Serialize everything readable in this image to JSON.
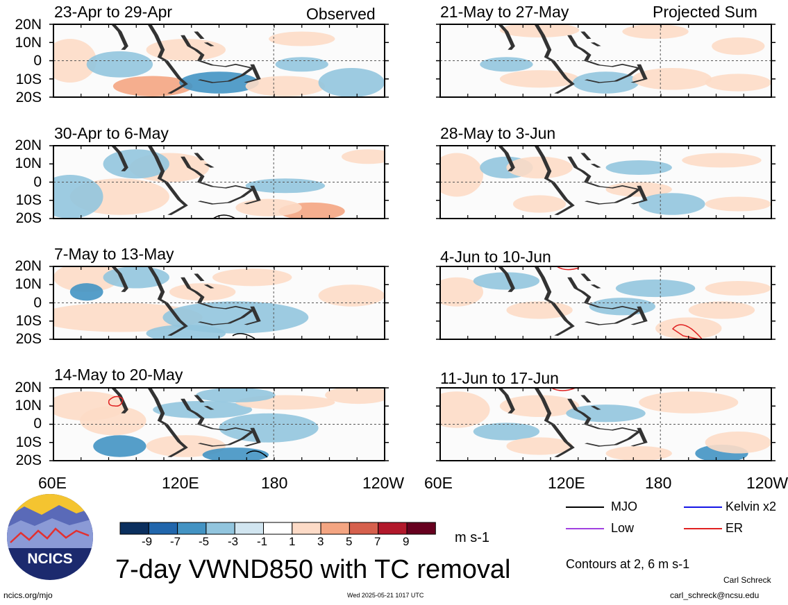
{
  "header": {
    "left": "Observed",
    "right": "Projected Sum"
  },
  "panels": {
    "left": [
      "23-Apr to 29-Apr",
      "30-Apr to 6-May",
      "7-May to 13-May",
      "14-May to 20-May"
    ],
    "right": [
      "21-May to 27-May",
      "28-May to 3-Jun",
      "4-Jun to 10-Jun",
      "11-Jun to 17-Jun"
    ]
  },
  "lat_labels": [
    "20N",
    "10N",
    "0",
    "10S",
    "20S"
  ],
  "lon_labels": [
    "60E",
    "120E",
    "180",
    "120W"
  ],
  "colorbar": {
    "ticks": [
      "-9",
      "-7",
      "-5",
      "-3",
      "-1",
      "1",
      "3",
      "5",
      "7",
      "9"
    ],
    "colors": [
      "#0b2f5e",
      "#2166ac",
      "#4393c3",
      "#92c5de",
      "#d1e5f0",
      "#ffffff",
      "#fddbc7",
      "#f4a582",
      "#d6604d",
      "#b2182b",
      "#67001f"
    ],
    "unit": "m s-1"
  },
  "title": "7-day VWND850 with TC removal",
  "legend": [
    {
      "label": "MJO",
      "color": "#000000"
    },
    {
      "label": "Kelvin x2",
      "color": "#1414e6"
    },
    {
      "label": "Low",
      "color": "#a040e0"
    },
    {
      "label": "ER",
      "color": "#e02020"
    }
  ],
  "contour_note": "Contours at 2, 6 m s-1",
  "logo_text": "NCICS",
  "footer": {
    "site": "ncics.org/mjo",
    "timestamp": "Wed 2025-05-21 1017 UTC",
    "author": "Carl Schreck",
    "email": "carl_schreck@ncsu.edu"
  },
  "chart_data": {
    "type": "heatmap",
    "variable": "7-day VWND850 with TC removal",
    "unit": "m s-1",
    "x_domain": [
      "60E",
      "120W"
    ],
    "y_domain": [
      "20S",
      "20N"
    ],
    "color_levels": [
      -9,
      -7,
      -5,
      -3,
      -1,
      1,
      3,
      5,
      7,
      9
    ],
    "contour_levels": [
      2,
      6
    ],
    "legend": [
      "MJO",
      "Kelvin x2",
      "Low",
      "ER"
    ]
  }
}
